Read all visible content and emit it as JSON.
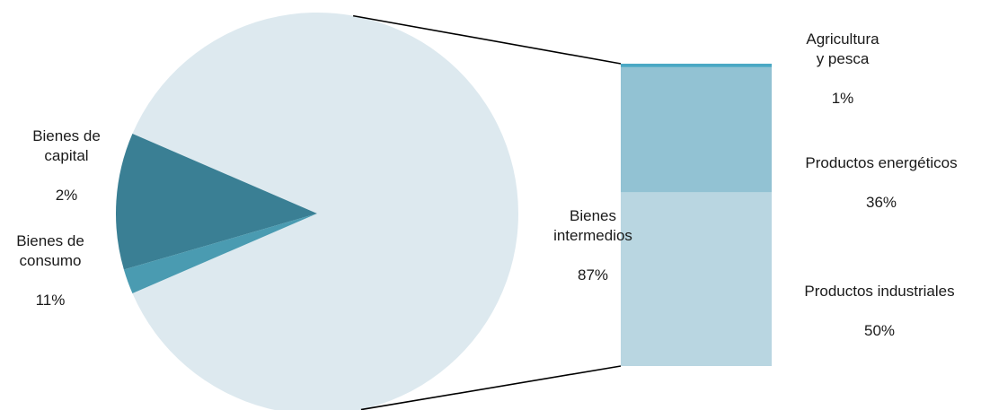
{
  "chart_data": {
    "type": "pie",
    "title": "",
    "pie": {
      "series": [
        {
          "name": "Bienes intermedios",
          "label": "Bienes\nintermedios",
          "pct_label": "87%",
          "value": 87,
          "color": "#dde9ef"
        },
        {
          "name": "Bienes de consumo",
          "label": "Bienes de\nconsumo",
          "pct_label": "11%",
          "value": 11,
          "color": "#3a7f94"
        },
        {
          "name": "Bienes de capital",
          "label": "Bienes de\ncapital",
          "pct_label": "2%",
          "value": 2,
          "color": "#4a9bb1"
        }
      ]
    },
    "breakdown": {
      "parent": "Bienes intermedios",
      "series": [
        {
          "name": "Productos industriales",
          "label": "Productos industriales",
          "pct_label": "50%",
          "value": 50,
          "color": "#b9d6e1"
        },
        {
          "name": "Productos energéticos",
          "label": "Productos energéticos",
          "pct_label": "36%",
          "value": 36,
          "color": "#92c2d3"
        },
        {
          "name": "Agricultura y pesca",
          "label": "Agricultura\ny pesca",
          "pct_label": "1%",
          "value": 1,
          "color": "#4aa8c4"
        }
      ]
    }
  }
}
